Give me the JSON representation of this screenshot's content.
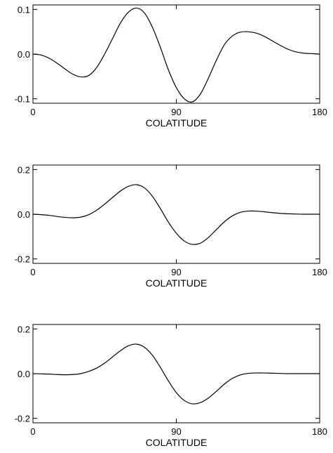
{
  "chart_data": [
    {
      "type": "line",
      "xlabel": "COLATITUDE",
      "ylabel": "",
      "xlim": [
        0,
        180
      ],
      "ylim": [
        -0.11,
        0.11
      ],
      "xticks": [
        0,
        90,
        180
      ],
      "xtick_labels": [
        "0",
        "90",
        "180"
      ],
      "yticks": [
        0.1,
        0.0,
        -0.1
      ],
      "ytick_labels": [
        "0.1",
        "0.0",
        "-0.1"
      ],
      "grid": false,
      "series": [
        {
          "x": [
            0,
            5,
            10,
            15,
            20,
            25,
            30,
            35,
            40,
            45,
            50,
            55,
            60,
            65,
            70,
            75,
            80,
            85,
            90,
            95,
            100,
            105,
            110,
            115,
            120,
            125,
            130,
            135,
            140,
            145,
            150,
            155,
            160,
            165,
            170,
            175,
            180
          ],
          "y": [
            0.0,
            -0.002,
            -0.009,
            -0.02,
            -0.033,
            -0.045,
            -0.051,
            -0.048,
            -0.03,
            0.0,
            0.035,
            0.07,
            0.094,
            0.103,
            0.092,
            0.06,
            0.015,
            -0.035,
            -0.075,
            -0.1,
            -0.107,
            -0.09,
            -0.055,
            -0.015,
            0.02,
            0.04,
            0.049,
            0.05,
            0.047,
            0.04,
            0.03,
            0.02,
            0.011,
            0.005,
            0.002,
            0.001,
            0.0
          ]
        }
      ]
    },
    {
      "type": "line",
      "xlabel": "COLATITUDE",
      "ylabel": "",
      "xlim": [
        0,
        180
      ],
      "ylim": [
        -0.22,
        0.22
      ],
      "xticks": [
        0,
        90,
        180
      ],
      "xtick_labels": [
        "0",
        "90",
        "180"
      ],
      "yticks": [
        0.2,
        0.0,
        -0.2
      ],
      "ytick_labels": [
        "0.2",
        "0.0",
        "-0.2"
      ],
      "grid": false,
      "series": [
        {
          "x": [
            0,
            5,
            10,
            15,
            20,
            25,
            30,
            35,
            40,
            45,
            50,
            55,
            60,
            65,
            70,
            75,
            80,
            85,
            90,
            95,
            100,
            105,
            110,
            115,
            120,
            125,
            130,
            135,
            140,
            145,
            150,
            155,
            160,
            165,
            170,
            175,
            180
          ],
          "y": [
            0.0,
            -0.002,
            -0.005,
            -0.01,
            -0.014,
            -0.016,
            -0.013,
            -0.002,
            0.018,
            0.045,
            0.075,
            0.104,
            0.125,
            0.132,
            0.118,
            0.08,
            0.025,
            -0.035,
            -0.085,
            -0.12,
            -0.135,
            -0.13,
            -0.105,
            -0.07,
            -0.035,
            -0.008,
            0.008,
            0.014,
            0.014,
            0.011,
            0.007,
            0.004,
            0.002,
            0.001,
            0.0,
            0.0,
            0.0
          ]
        }
      ]
    },
    {
      "type": "line",
      "xlabel": "COLATITUDE",
      "ylabel": "",
      "xlim": [
        0,
        180
      ],
      "ylim": [
        -0.22,
        0.22
      ],
      "xticks": [
        0,
        90,
        180
      ],
      "xtick_labels": [
        "0",
        "90",
        "180"
      ],
      "yticks": [
        0.2,
        0.0,
        -0.2
      ],
      "ytick_labels": [
        "0.2",
        "0.0",
        "-0.2"
      ],
      "grid": false,
      "series": [
        {
          "x": [
            0,
            5,
            10,
            15,
            20,
            25,
            30,
            35,
            40,
            45,
            50,
            55,
            60,
            65,
            70,
            75,
            80,
            85,
            90,
            95,
            100,
            105,
            110,
            115,
            120,
            125,
            130,
            135,
            140,
            145,
            150,
            155,
            160,
            165,
            170,
            175,
            180
          ],
          "y": [
            0.0,
            -0.001,
            -0.002,
            -0.004,
            -0.005,
            -0.004,
            0.0,
            0.01,
            0.025,
            0.047,
            0.075,
            0.103,
            0.125,
            0.132,
            0.118,
            0.082,
            0.028,
            -0.032,
            -0.085,
            -0.12,
            -0.135,
            -0.13,
            -0.11,
            -0.08,
            -0.048,
            -0.022,
            -0.006,
            0.001,
            0.003,
            0.003,
            0.002,
            0.001,
            0.0,
            0.0,
            0.0,
            0.0,
            0.0
          ]
        }
      ]
    }
  ]
}
